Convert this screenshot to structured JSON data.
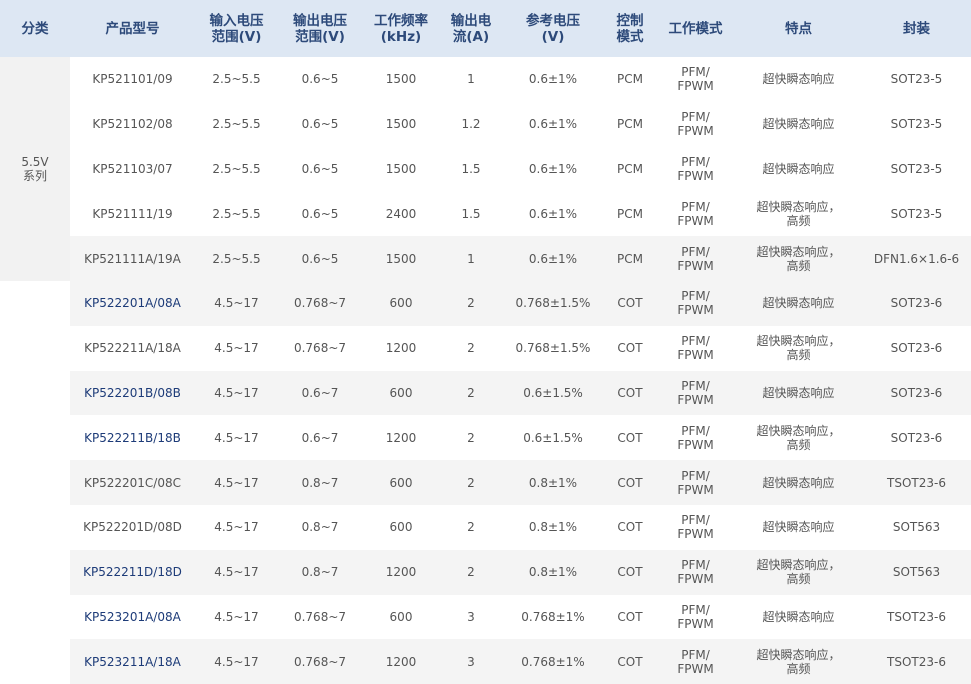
{
  "table": {
    "header": [
      "分类",
      "产品型号",
      "输入电压\n范围(V)",
      "输出电压\n范围(V)",
      "工作频率\n(kHz)",
      "输出电\n流(A)",
      "参考电压\n(V)",
      "控制\n模式",
      "工作模式",
      "特点",
      "封装"
    ],
    "groups": [
      {
        "label": "5.5V\n系列",
        "count": 5
      },
      {
        "count": 9
      }
    ],
    "rows": [
      [
        "KP521101/09",
        "2.5~5.5",
        "0.6~5",
        "1500",
        "1",
        "0.6±1%",
        "PCM",
        "PFM/\nFPWM",
        "超快瞬态响应",
        "SOT23-5"
      ],
      [
        "KP521102/08",
        "2.5~5.5",
        "0.6~5",
        "1500",
        "1.2",
        "0.6±1%",
        "PCM",
        "PFM/\nFPWM",
        "超快瞬态响应",
        "SOT23-5"
      ],
      [
        "KP521103/07",
        "2.5~5.5",
        "0.6~5",
        "1500",
        "1.5",
        "0.6±1%",
        "PCM",
        "PFM/\nFPWM",
        "超快瞬态响应",
        "SOT23-5"
      ],
      [
        "KP521111/19",
        "2.5~5.5",
        "0.6~5",
        "2400",
        "1.5",
        "0.6±1%",
        "PCM",
        "PFM/\nFPWM",
        "超快瞬态响应，\n高频",
        "SOT23-5"
      ],
      [
        "KP521111A/19A",
        "2.5~5.5",
        "0.6~5",
        "1500",
        "1",
        "0.6±1%",
        "PCM",
        "PFM/\nFPWM",
        "超快瞬态响应，\n高频",
        "DFN1.6×1.6-6"
      ],
      [
        "KP522201A/08A",
        "4.5~17",
        "0.768~7",
        "600",
        "2",
        "0.768±1.5%",
        "COT",
        "PFM/\nFPWM",
        "超快瞬态响应",
        "SOT23-6"
      ],
      [
        "KP522211A/18A",
        "4.5~17",
        "0.768~7",
        "1200",
        "2",
        "0.768±1.5%",
        "COT",
        "PFM/\nFPWM",
        "超快瞬态响应，\n高频",
        "SOT23-6"
      ],
      [
        "KP522201B/08B",
        "4.5~17",
        "0.6~7",
        "600",
        "2",
        "0.6±1.5%",
        "COT",
        "PFM/\nFPWM",
        "超快瞬态响应",
        "SOT23-6"
      ],
      [
        "KP522211B/18B",
        "4.5~17",
        "0.6~7",
        "1200",
        "2",
        "0.6±1.5%",
        "COT",
        "PFM/\nFPWM",
        "超快瞬态响应，\n高频",
        "SOT23-6"
      ],
      [
        "KP522201C/08C",
        "4.5~17",
        "0.8~7",
        "600",
        "2",
        "0.8±1%",
        "COT",
        "PFM/\nFPWM",
        "超快瞬态响应",
        "TSOT23-6"
      ],
      [
        "KP522201D/08D",
        "4.5~17",
        "0.8~7",
        "600",
        "2",
        "0.8±1%",
        "COT",
        "PFM/\nFPWM",
        "超快瞬态响应",
        "SOT563"
      ],
      [
        "KP522211D/18D",
        "4.5~17",
        "0.8~7",
        "1200",
        "2",
        "0.8±1%",
        "COT",
        "PFM/\nFPWM",
        "超快瞬态响应，\n高频",
        "SOT563"
      ],
      [
        "KP523201A/08A",
        "4.5~17",
        "0.768~7",
        "600",
        "3",
        "0.768±1%",
        "COT",
        "PFM/\nFPWM",
        "超快瞬态响应",
        "TSOT23-6"
      ],
      [
        "KP523211A/18A",
        "4.5~17",
        "0.768~7",
        "1200",
        "3",
        "0.768±1%",
        "COT",
        "PFM/\nFPWM",
        "超快瞬态响应，\n高频",
        "TSOT23-6"
      ]
    ]
  }
}
